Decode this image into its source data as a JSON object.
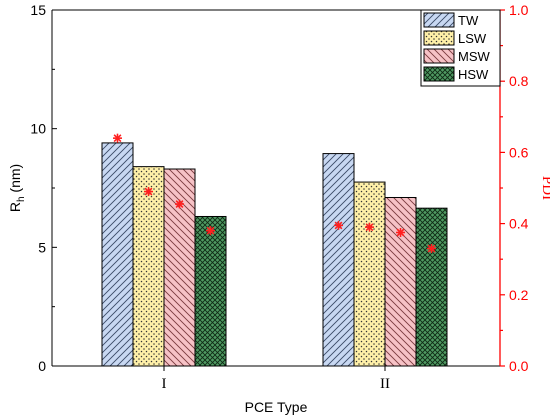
{
  "chart_data": {
    "type": "bar",
    "categories": [
      "I",
      "II"
    ],
    "xlabel": "PCE Type",
    "ylabel": {
      "main": "R",
      "sub": "h",
      "unit": " (nm)"
    },
    "ylim": [
      0,
      15
    ],
    "yticks": [
      0,
      5,
      10,
      15
    ],
    "y2label": "PDI",
    "y2lim": [
      0.0,
      1.0
    ],
    "y2ticks": [
      "0.0",
      "0.2",
      "0.4",
      "0.6",
      "0.8",
      "1.0"
    ],
    "legend_position": "top-right",
    "grid": false,
    "series": [
      {
        "name": "TW",
        "values": [
          9.4,
          8.95
        ],
        "pdi": [
          0.64,
          0.395
        ],
        "fill": "#c8d8f2",
        "pattern": "diag-left"
      },
      {
        "name": "LSW",
        "values": [
          8.4,
          7.75
        ],
        "pdi": [
          0.49,
          0.39
        ],
        "fill": "#fff0a8",
        "pattern": "dots"
      },
      {
        "name": "MSW",
        "values": [
          8.3,
          7.1
        ],
        "pdi": [
          0.455,
          0.375
        ],
        "fill": "#f6c2c6",
        "pattern": "diag-right"
      },
      {
        "name": "HSW",
        "values": [
          6.3,
          6.65
        ],
        "pdi": [
          0.38,
          0.33
        ],
        "fill": "#4f9a62",
        "pattern": "crosshatch"
      }
    ],
    "pdi_marker_color": "#ff2020",
    "right_axis_color": "#ff0000"
  }
}
